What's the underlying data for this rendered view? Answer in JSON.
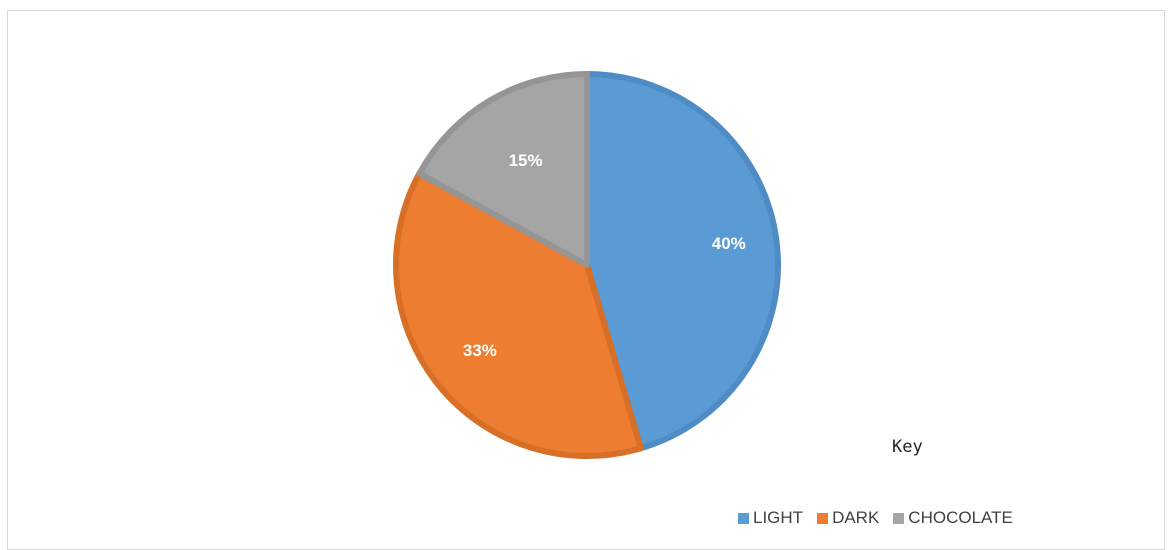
{
  "chart_data": {
    "type": "pie",
    "title": "",
    "slices": [
      {
        "name": "LIGHT",
        "label": "40%",
        "value": 40,
        "color": "#5b9bd5",
        "stroke": "#4f8bc4"
      },
      {
        "name": "DARK",
        "label": "33%",
        "value": 33,
        "color": "#ed7d31",
        "stroke": "#d86f26"
      },
      {
        "name": "CHOCOLATE",
        "label": "15%",
        "value": 15,
        "color": "#a5a5a5",
        "stroke": "#959595"
      }
    ],
    "legend_placement": "bottom-right"
  },
  "key_text": "Key"
}
